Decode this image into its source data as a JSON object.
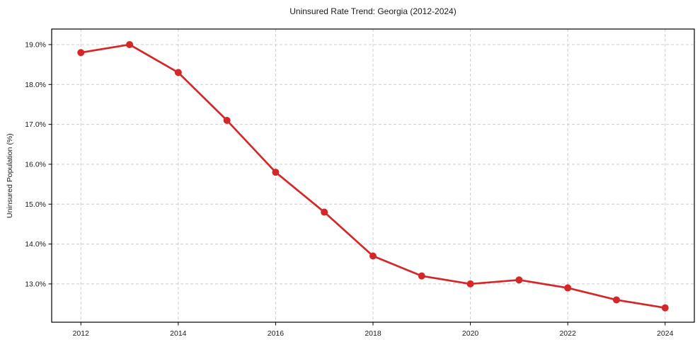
{
  "chart_data": {
    "type": "line",
    "title": "Uninsured Rate Trend: Georgia (2012-2024)",
    "ylabel": "Uninsured Population (%)",
    "xlabel": "",
    "x": [
      2012,
      2013,
      2014,
      2015,
      2016,
      2017,
      2018,
      2019,
      2020,
      2021,
      2022,
      2023,
      2024
    ],
    "values": [
      18.8,
      19.0,
      18.3,
      17.1,
      15.8,
      14.8,
      13.7,
      13.2,
      13.0,
      13.1,
      12.9,
      12.6,
      12.4
    ],
    "xticks": [
      2012,
      2014,
      2016,
      2018,
      2020,
      2022,
      2024
    ],
    "xtick_labels": [
      "2012",
      "2014",
      "2016",
      "2018",
      "2020",
      "2022",
      "2024"
    ],
    "yticks": [
      13.0,
      14.0,
      15.0,
      16.0,
      17.0,
      18.0,
      19.0
    ],
    "ytick_labels": [
      "13.0%",
      "14.0%",
      "15.0%",
      "16.0%",
      "17.0%",
      "18.0%",
      "19.0%"
    ],
    "xlim": [
      2011.4,
      2024.6
    ],
    "ylim": [
      12.04,
      19.39
    ],
    "grid": true,
    "legend": "none",
    "line_color": "#d62728",
    "grid_color": "#cccccc",
    "axis_color": "#000000",
    "text_color": "#1a1a1a",
    "background": "#ffffff",
    "marker": "circle"
  }
}
